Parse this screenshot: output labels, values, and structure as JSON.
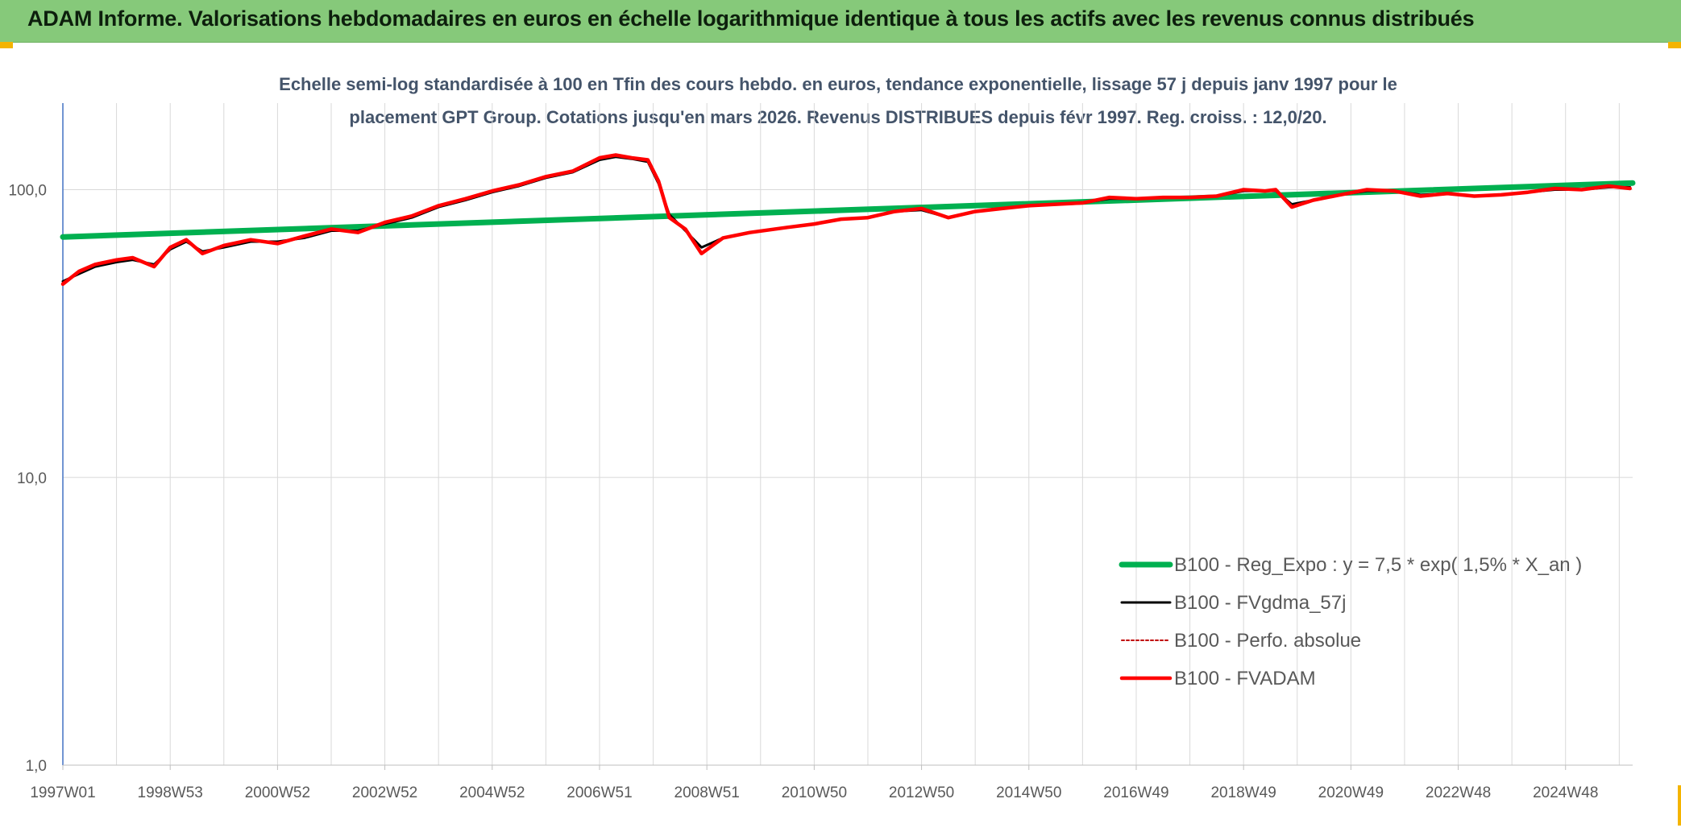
{
  "header": {
    "title": "ADAM Informe. Valorisations hebdomadaires en euros en échelle logarithmique identique à tous les actifs avec les revenus connus distribués"
  },
  "colors": {
    "header_bg": "#86c97a",
    "trend": "#00b050",
    "smooth": "#000000",
    "perf": "#c00000",
    "fvadam": "#ff0000",
    "grid": "#d9d9d9",
    "axis": "#4472c4",
    "corner": "#f4b400"
  },
  "chart_data": {
    "type": "line",
    "title_lines": [
      "Echelle semi-log standardisée à 100 en Tfin des cours hebdo. en euros, tendance exponentielle, lissage 57 j depuis janv 1997 pour le",
      "placement GPT Group. Cotations jusqu'en mars 2026. Revenus DISTRIBUES depuis févr 1997. Reg. croiss. : 12,0/20."
    ],
    "y_scale": "log",
    "ylim": [
      1,
      200
    ],
    "y_ticks": [
      {
        "value": 1,
        "label": "1,0"
      },
      {
        "value": 10,
        "label": "10,0"
      },
      {
        "value": 100,
        "label": "100,0"
      }
    ],
    "xlim": [
      1997.0,
      2026.25
    ],
    "x_ticks": [
      {
        "value": 1997.0,
        "label": "1997W01"
      },
      {
        "value": 1999.0,
        "label": "1998W53"
      },
      {
        "value": 2001.0,
        "label": "2000W52"
      },
      {
        "value": 2003.0,
        "label": "2002W52"
      },
      {
        "value": 2005.0,
        "label": "2004W52"
      },
      {
        "value": 2007.0,
        "label": "2006W51"
      },
      {
        "value": 2009.0,
        "label": "2008W51"
      },
      {
        "value": 2011.0,
        "label": "2010W50"
      },
      {
        "value": 2013.0,
        "label": "2012W50"
      },
      {
        "value": 2015.0,
        "label": "2014W50"
      },
      {
        "value": 2017.0,
        "label": "2016W49"
      },
      {
        "value": 2019.0,
        "label": "2018W49"
      },
      {
        "value": 2021.0,
        "label": "2020W49"
      },
      {
        "value": 2023.0,
        "label": "2022W48"
      },
      {
        "value": 2025.0,
        "label": "2024W48"
      }
    ],
    "grid_x_years": [
      1997,
      1998,
      1999,
      2000,
      2001,
      2002,
      2003,
      2004,
      2005,
      2006,
      2007,
      2008,
      2009,
      2010,
      2011,
      2012,
      2013,
      2014,
      2015,
      2016,
      2017,
      2018,
      2019,
      2020,
      2021,
      2022,
      2023,
      2024,
      2025,
      2026
    ],
    "grid": true,
    "legend_position": "bottom-right",
    "series": [
      {
        "name": "B100 - Reg_Expo : y = 7,5 * exp( 1,5% *  X_an )",
        "style": "trend",
        "x": [
          1997.0,
          2026.25
        ],
        "y": [
          68.5,
          105.5
        ]
      },
      {
        "name": "B100 - FVgdma_57j",
        "style": "smooth",
        "x": [
          1997.0,
          1997.3,
          1997.6,
          1998.0,
          1998.3,
          1998.7,
          1999.0,
          1999.3,
          1999.6,
          2000.0,
          2000.5,
          2001.0,
          2001.5,
          2002.0,
          2002.5,
          2003.0,
          2003.5,
          2004.0,
          2004.5,
          2005.0,
          2005.5,
          2006.0,
          2006.5,
          2007.0,
          2007.3,
          2007.6,
          2007.9,
          2008.1,
          2008.3,
          2008.6,
          2008.9,
          2009.3,
          2009.8,
          2010.5,
          2011.0,
          2011.5,
          2012.0,
          2012.5,
          2013.0,
          2013.5,
          2014.0,
          2014.5,
          2015.0,
          2015.5,
          2016.0,
          2016.5,
          2017.0,
          2017.5,
          2018.0,
          2018.5,
          2019.0,
          2019.4,
          2019.6,
          2019.9,
          2020.3,
          2020.8,
          2021.3,
          2021.8,
          2022.3,
          2022.8,
          2023.3,
          2023.8,
          2024.3,
          2024.8,
          2025.3,
          2025.8,
          2026.2
        ],
        "y": [
          48,
          51,
          54,
          56,
          57,
          55,
          62,
          66,
          61,
          63,
          66,
          66,
          68,
          72,
          72,
          76,
          80,
          87,
          92,
          98,
          103,
          110,
          115,
          127,
          130,
          128,
          125,
          105,
          82,
          72,
          63,
          68,
          71,
          74,
          76,
          79,
          80,
          84,
          85,
          80,
          84,
          86,
          88,
          89,
          90,
          93,
          93,
          94,
          94,
          95,
          99,
          99,
          99,
          89,
          92,
          96,
          99,
          99,
          96,
          97,
          95,
          96,
          98,
          100,
          100,
          102,
          102
        ]
      },
      {
        "name": "B100 - Perfo. absolue",
        "style": "perf",
        "x": [
          1997.0,
          1997.3,
          1997.6,
          1998.0,
          1998.3,
          1998.7,
          1999.0,
          1999.3,
          1999.6,
          2000.0,
          2000.5,
          2001.0,
          2001.5,
          2002.0,
          2002.5,
          2003.0,
          2003.5,
          2004.0,
          2004.5,
          2005.0,
          2005.5,
          2006.0,
          2006.5,
          2007.0,
          2007.3,
          2007.6,
          2007.9,
          2008.1,
          2008.3,
          2008.6,
          2008.9,
          2009.3,
          2009.8,
          2010.5,
          2011.0,
          2011.5,
          2012.0,
          2012.5,
          2013.0,
          2013.5,
          2014.0,
          2014.5,
          2015.0,
          2015.5,
          2016.0,
          2016.5,
          2017.0,
          2017.5,
          2018.0,
          2018.5,
          2019.0,
          2019.4,
          2019.6,
          2019.9,
          2020.3,
          2020.8,
          2021.3,
          2021.8,
          2022.3,
          2022.8,
          2023.3,
          2023.8,
          2024.3,
          2024.8,
          2025.3,
          2025.8,
          2026.2
        ],
        "y": [
          47,
          52,
          55,
          57,
          58,
          54,
          63,
          67,
          60,
          64,
          67,
          65,
          69,
          73,
          71,
          77,
          81,
          88,
          93,
          99,
          104,
          111,
          116,
          129,
          132,
          129,
          127,
          107,
          80,
          73,
          60,
          68,
          71,
          74,
          76,
          79,
          80,
          84,
          86,
          80,
          84,
          86,
          88,
          89,
          90,
          94,
          93,
          94,
          94,
          95,
          100,
          99,
          100,
          87,
          92,
          96,
          100,
          99,
          95,
          97,
          95,
          96,
          98,
          101,
          100,
          103,
          101
        ]
      },
      {
        "name": "B100 - FVADAM",
        "style": "fvadam",
        "x": [
          1997.0,
          1997.3,
          1997.6,
          1998.0,
          1998.3,
          1998.7,
          1999.0,
          1999.3,
          1999.6,
          2000.0,
          2000.5,
          2001.0,
          2001.5,
          2002.0,
          2002.5,
          2003.0,
          2003.5,
          2004.0,
          2004.5,
          2005.0,
          2005.5,
          2006.0,
          2006.5,
          2007.0,
          2007.3,
          2007.6,
          2007.9,
          2008.1,
          2008.3,
          2008.6,
          2008.9,
          2009.3,
          2009.8,
          2010.5,
          2011.0,
          2011.5,
          2012.0,
          2012.5,
          2013.0,
          2013.5,
          2014.0,
          2014.5,
          2015.0,
          2015.5,
          2016.0,
          2016.5,
          2017.0,
          2017.5,
          2018.0,
          2018.5,
          2019.0,
          2019.4,
          2019.6,
          2019.9,
          2020.3,
          2020.8,
          2021.3,
          2021.8,
          2022.3,
          2022.8,
          2023.3,
          2023.8,
          2024.3,
          2024.8,
          2025.3,
          2025.8,
          2026.2
        ],
        "y": [
          47,
          52,
          55,
          57,
          58,
          54,
          63,
          67,
          60,
          64,
          67,
          65,
          69,
          73,
          71,
          77,
          81,
          88,
          93,
          99,
          104,
          111,
          116,
          129,
          132,
          129,
          127,
          107,
          80,
          73,
          60,
          68,
          71,
          74,
          76,
          79,
          80,
          84,
          86,
          80,
          84,
          86,
          88,
          89,
          90,
          94,
          93,
          94,
          94,
          95,
          100,
          99,
          100,
          87,
          92,
          96,
          100,
          99,
          95,
          97,
          95,
          96,
          98,
          101,
          100,
          103,
          101
        ]
      }
    ]
  }
}
